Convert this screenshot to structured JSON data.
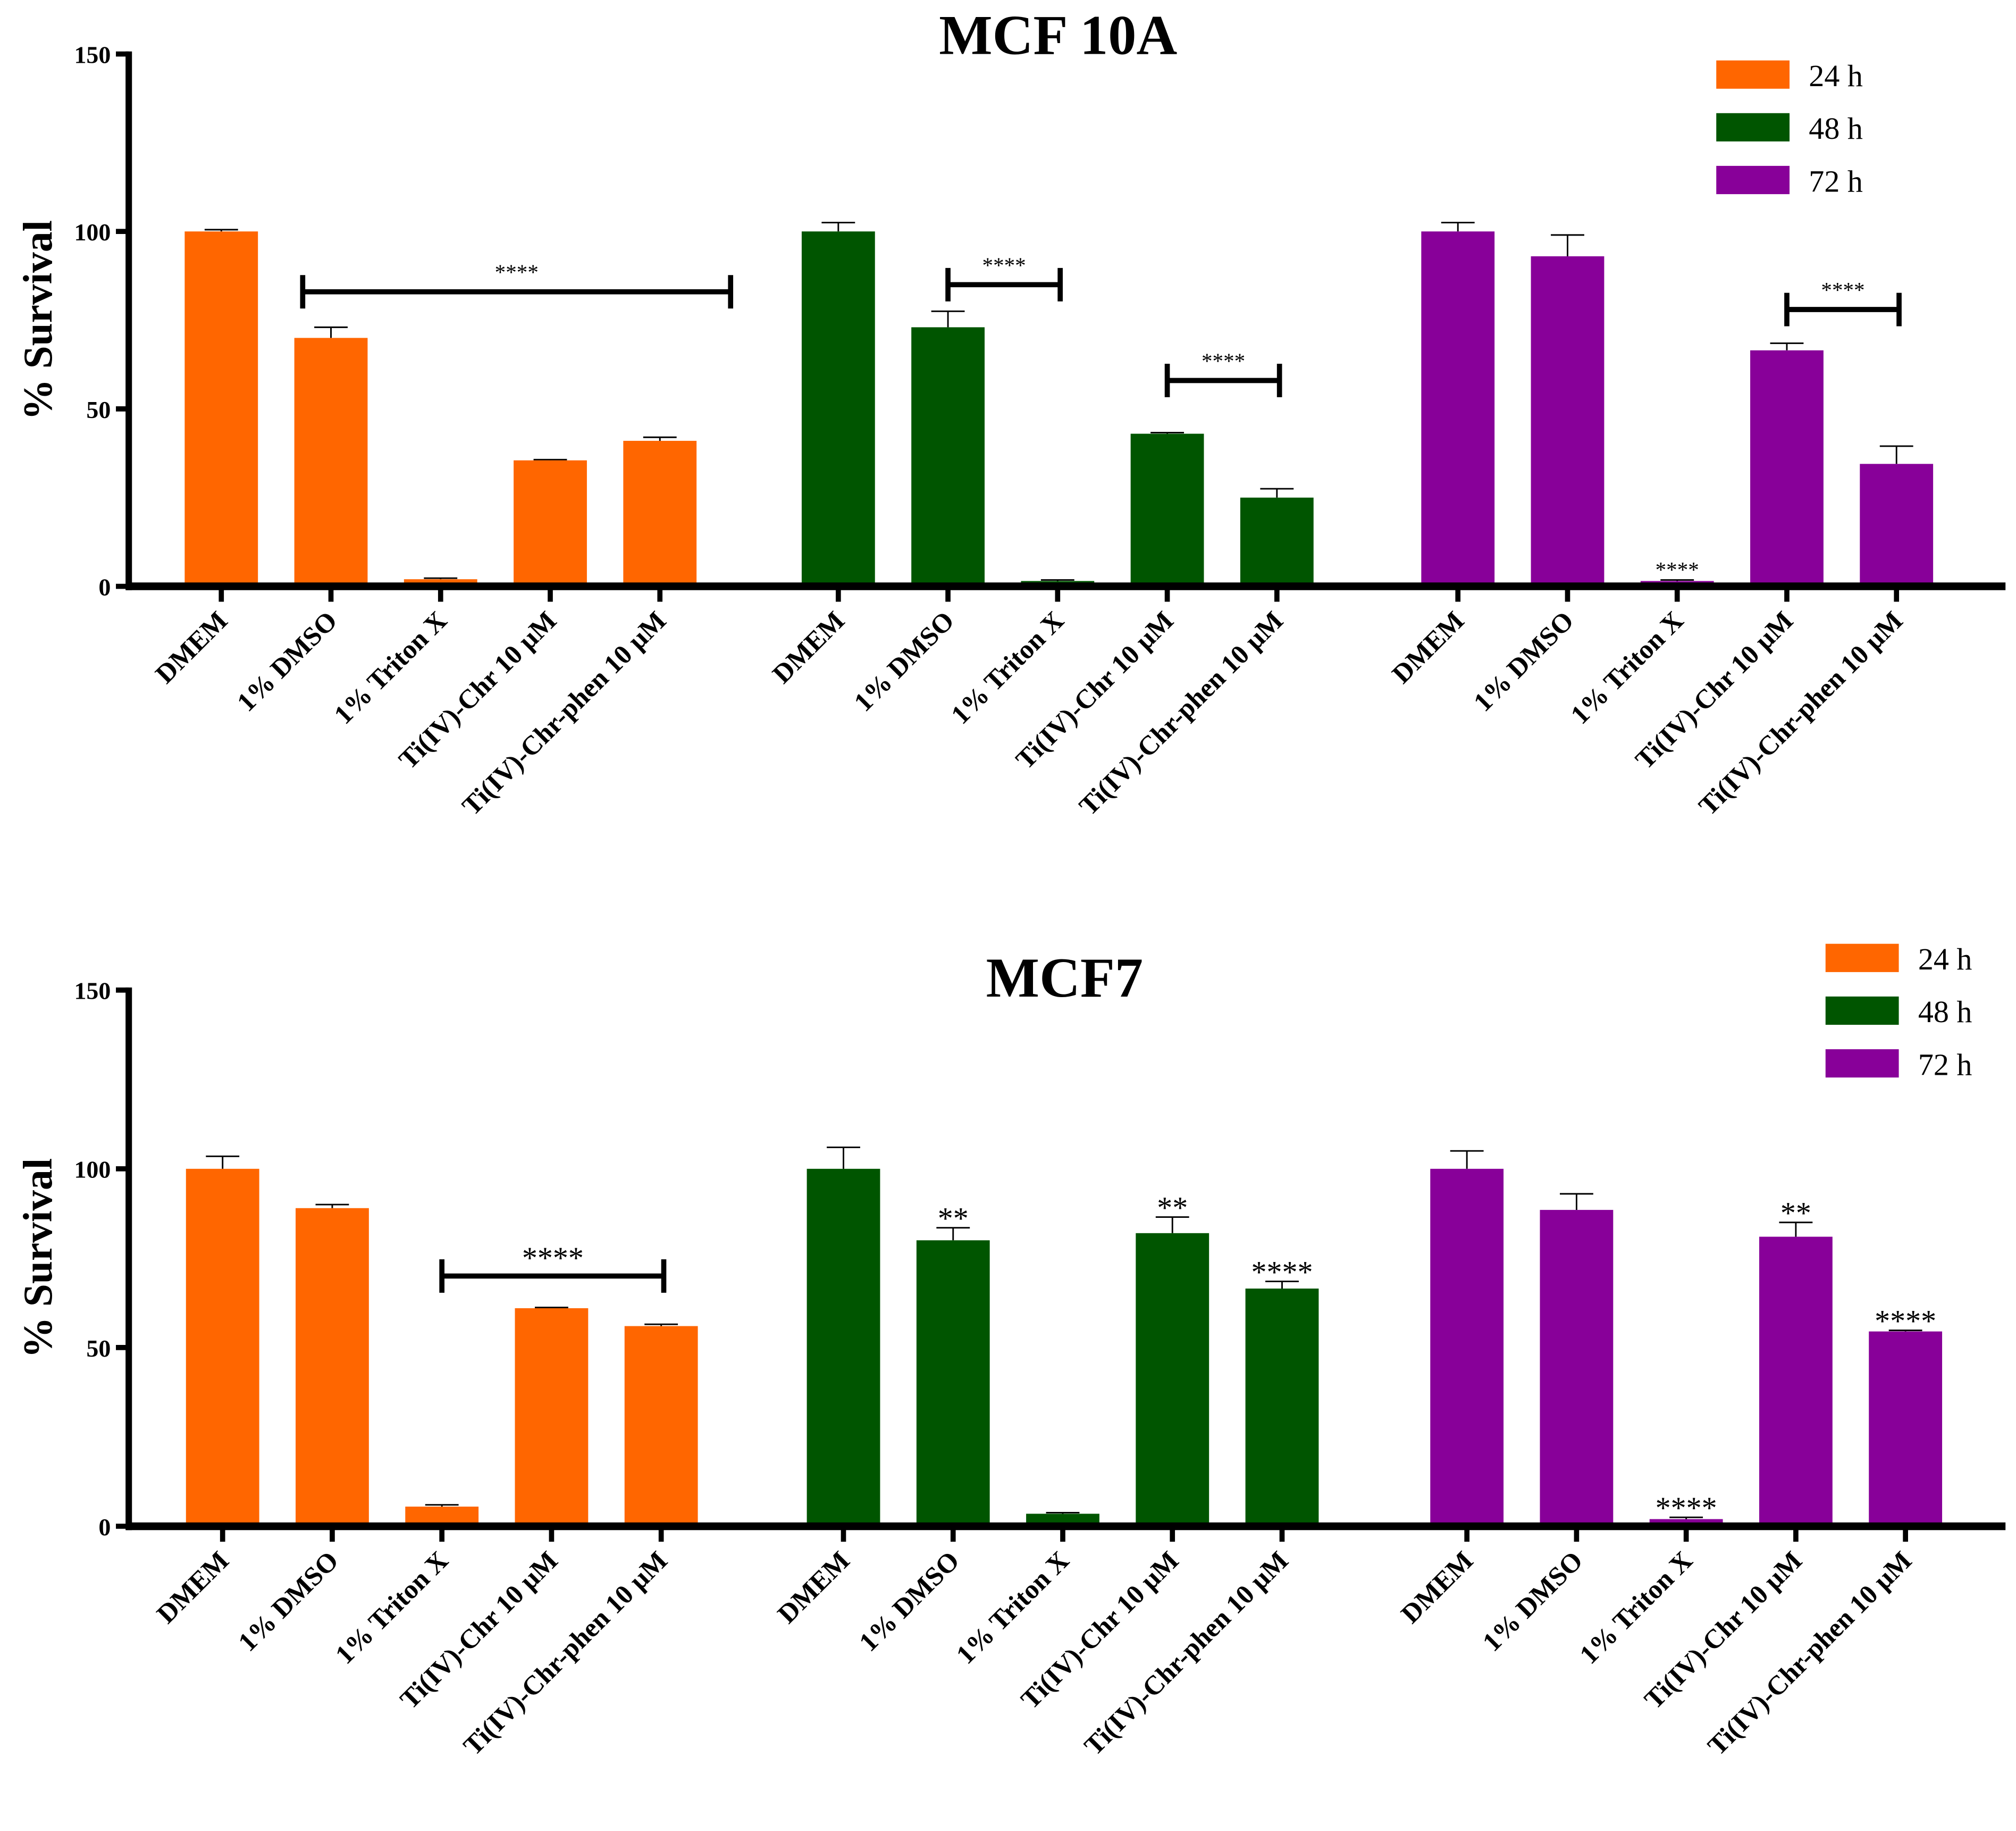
{
  "chart_data": [
    {
      "type": "bar",
      "title": "MCF 10A",
      "ylabel": "% Survival",
      "xlabel": "",
      "ylim": [
        0,
        150
      ],
      "yticks": [
        "0",
        "50",
        "100",
        "150"
      ],
      "grid": false,
      "legend_position": "top-right",
      "categories": [
        "DMEM",
        "1% DMSO",
        "1% Triton X",
        "Ti(IV)-Chr 10 µM",
        "Ti(IV)-Chr-phen 10 µM"
      ],
      "series": [
        {
          "name": "24 h",
          "color": "#ff6600",
          "values": [
            100,
            70,
            2,
            35.5,
            41
          ],
          "errors": [
            0.5,
            3,
            0.3,
            0.2,
            1
          ]
        },
        {
          "name": "48 h",
          "color": "#005500",
          "values": [
            100,
            73,
            1.5,
            43,
            25
          ],
          "errors": [
            2.5,
            4.5,
            0.3,
            0.3,
            2.5
          ]
        },
        {
          "name": "72 h",
          "color": "#880099",
          "values": [
            100,
            93,
            1.5,
            66.5,
            34.5
          ],
          "errors": [
            2.5,
            6,
            0.3,
            2,
            5
          ]
        }
      ],
      "annotations": [
        {
          "text": "****",
          "series": 0,
          "from": 1,
          "to": 4,
          "y": 83
        },
        {
          "text": "****",
          "series": 1,
          "from": 1,
          "to": 2,
          "y": 85
        },
        {
          "text": "****",
          "series": 1,
          "from": 3,
          "to": 4,
          "y": 58
        },
        {
          "text": "****",
          "series": 2,
          "from": 2,
          "to": 2,
          "y": null
        },
        {
          "text": "****",
          "series": 2,
          "from": 3,
          "to": 4,
          "y": 78
        }
      ]
    },
    {
      "type": "bar",
      "title": "MCF7",
      "ylabel": "% Survival",
      "xlabel": "",
      "ylim": [
        0,
        150
      ],
      "yticks": [
        "0",
        "50",
        "100",
        "150"
      ],
      "grid": false,
      "legend_position": "top-right",
      "categories": [
        "DMEM",
        "1% DMSO",
        "1% Triton X",
        "Ti(IV)-Chr 10 µM",
        "Ti(IV)-Chr-phen 10 µM"
      ],
      "series": [
        {
          "name": "24 h",
          "color": "#ff6600",
          "values": [
            100,
            89,
            5.5,
            61,
            56
          ],
          "errors": [
            3.5,
            1,
            0.5,
            0.2,
            0.5
          ]
        },
        {
          "name": "48 h",
          "color": "#005500",
          "values": [
            100,
            80,
            3.5,
            82,
            66.5
          ],
          "errors": [
            6,
            3.5,
            0.3,
            4.5,
            2
          ]
        },
        {
          "name": "72 h",
          "color": "#880099",
          "values": [
            100,
            88.5,
            2,
            81,
            54.5
          ],
          "errors": [
            5,
            4.5,
            0.5,
            4,
            0.3
          ]
        }
      ],
      "annotations": [
        {
          "text": "****",
          "series": 0,
          "from": 2,
          "to": 4,
          "y": 70
        },
        {
          "text": "**",
          "series": 1,
          "from": 1,
          "to": 1,
          "y": null
        },
        {
          "text": "**",
          "series": 1,
          "from": 3,
          "to": 3,
          "y": null
        },
        {
          "text": "****",
          "series": 1,
          "from": 4,
          "to": 4,
          "y": null
        },
        {
          "text": "****",
          "series": 2,
          "from": 2,
          "to": 2,
          "y": null
        },
        {
          "text": "**",
          "series": 2,
          "from": 3,
          "to": 3,
          "y": null
        },
        {
          "text": "****",
          "series": 2,
          "from": 4,
          "to": 4,
          "y": null
        }
      ]
    }
  ]
}
